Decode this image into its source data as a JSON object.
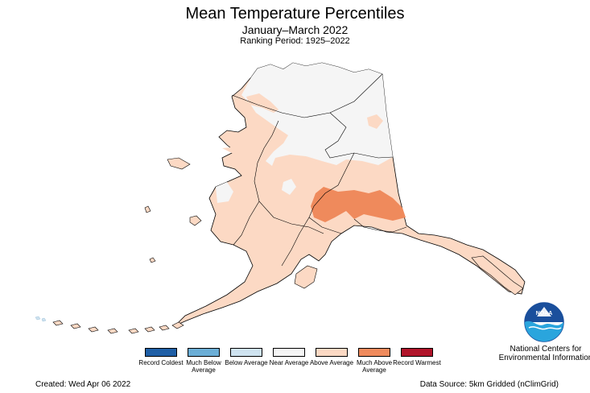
{
  "header": {
    "title": "Mean Temperature Percentiles",
    "subtitle": "January–March 2022",
    "ranking": "Ranking Period: 1925–2022"
  },
  "map": {
    "region": "Alaska",
    "categories_present": [
      "Near Average",
      "Above Average",
      "Much Above Average"
    ]
  },
  "legend": [
    {
      "label": "Record Coldest",
      "color": "#1f5fa6"
    },
    {
      "label": "Much Below Average",
      "color": "#6baed6"
    },
    {
      "label": "Below Average",
      "color": "#cfe3f0"
    },
    {
      "label": "Near Average",
      "color": "#f5f5f5"
    },
    {
      "label": "Above Average",
      "color": "#fcd9c4"
    },
    {
      "label": "Much Above Average",
      "color": "#ef8a5c"
    },
    {
      "label": "Record Warmest",
      "color": "#b0142a"
    }
  ],
  "footer": {
    "created": "Created: Wed Apr 06 2022",
    "source": "Data Source: 5km Gridded (nClimGrid)",
    "agency": "National Centers for Environmental Information"
  },
  "logo": {
    "text": "NOAA",
    "icon": "noaa-logo-icon"
  }
}
